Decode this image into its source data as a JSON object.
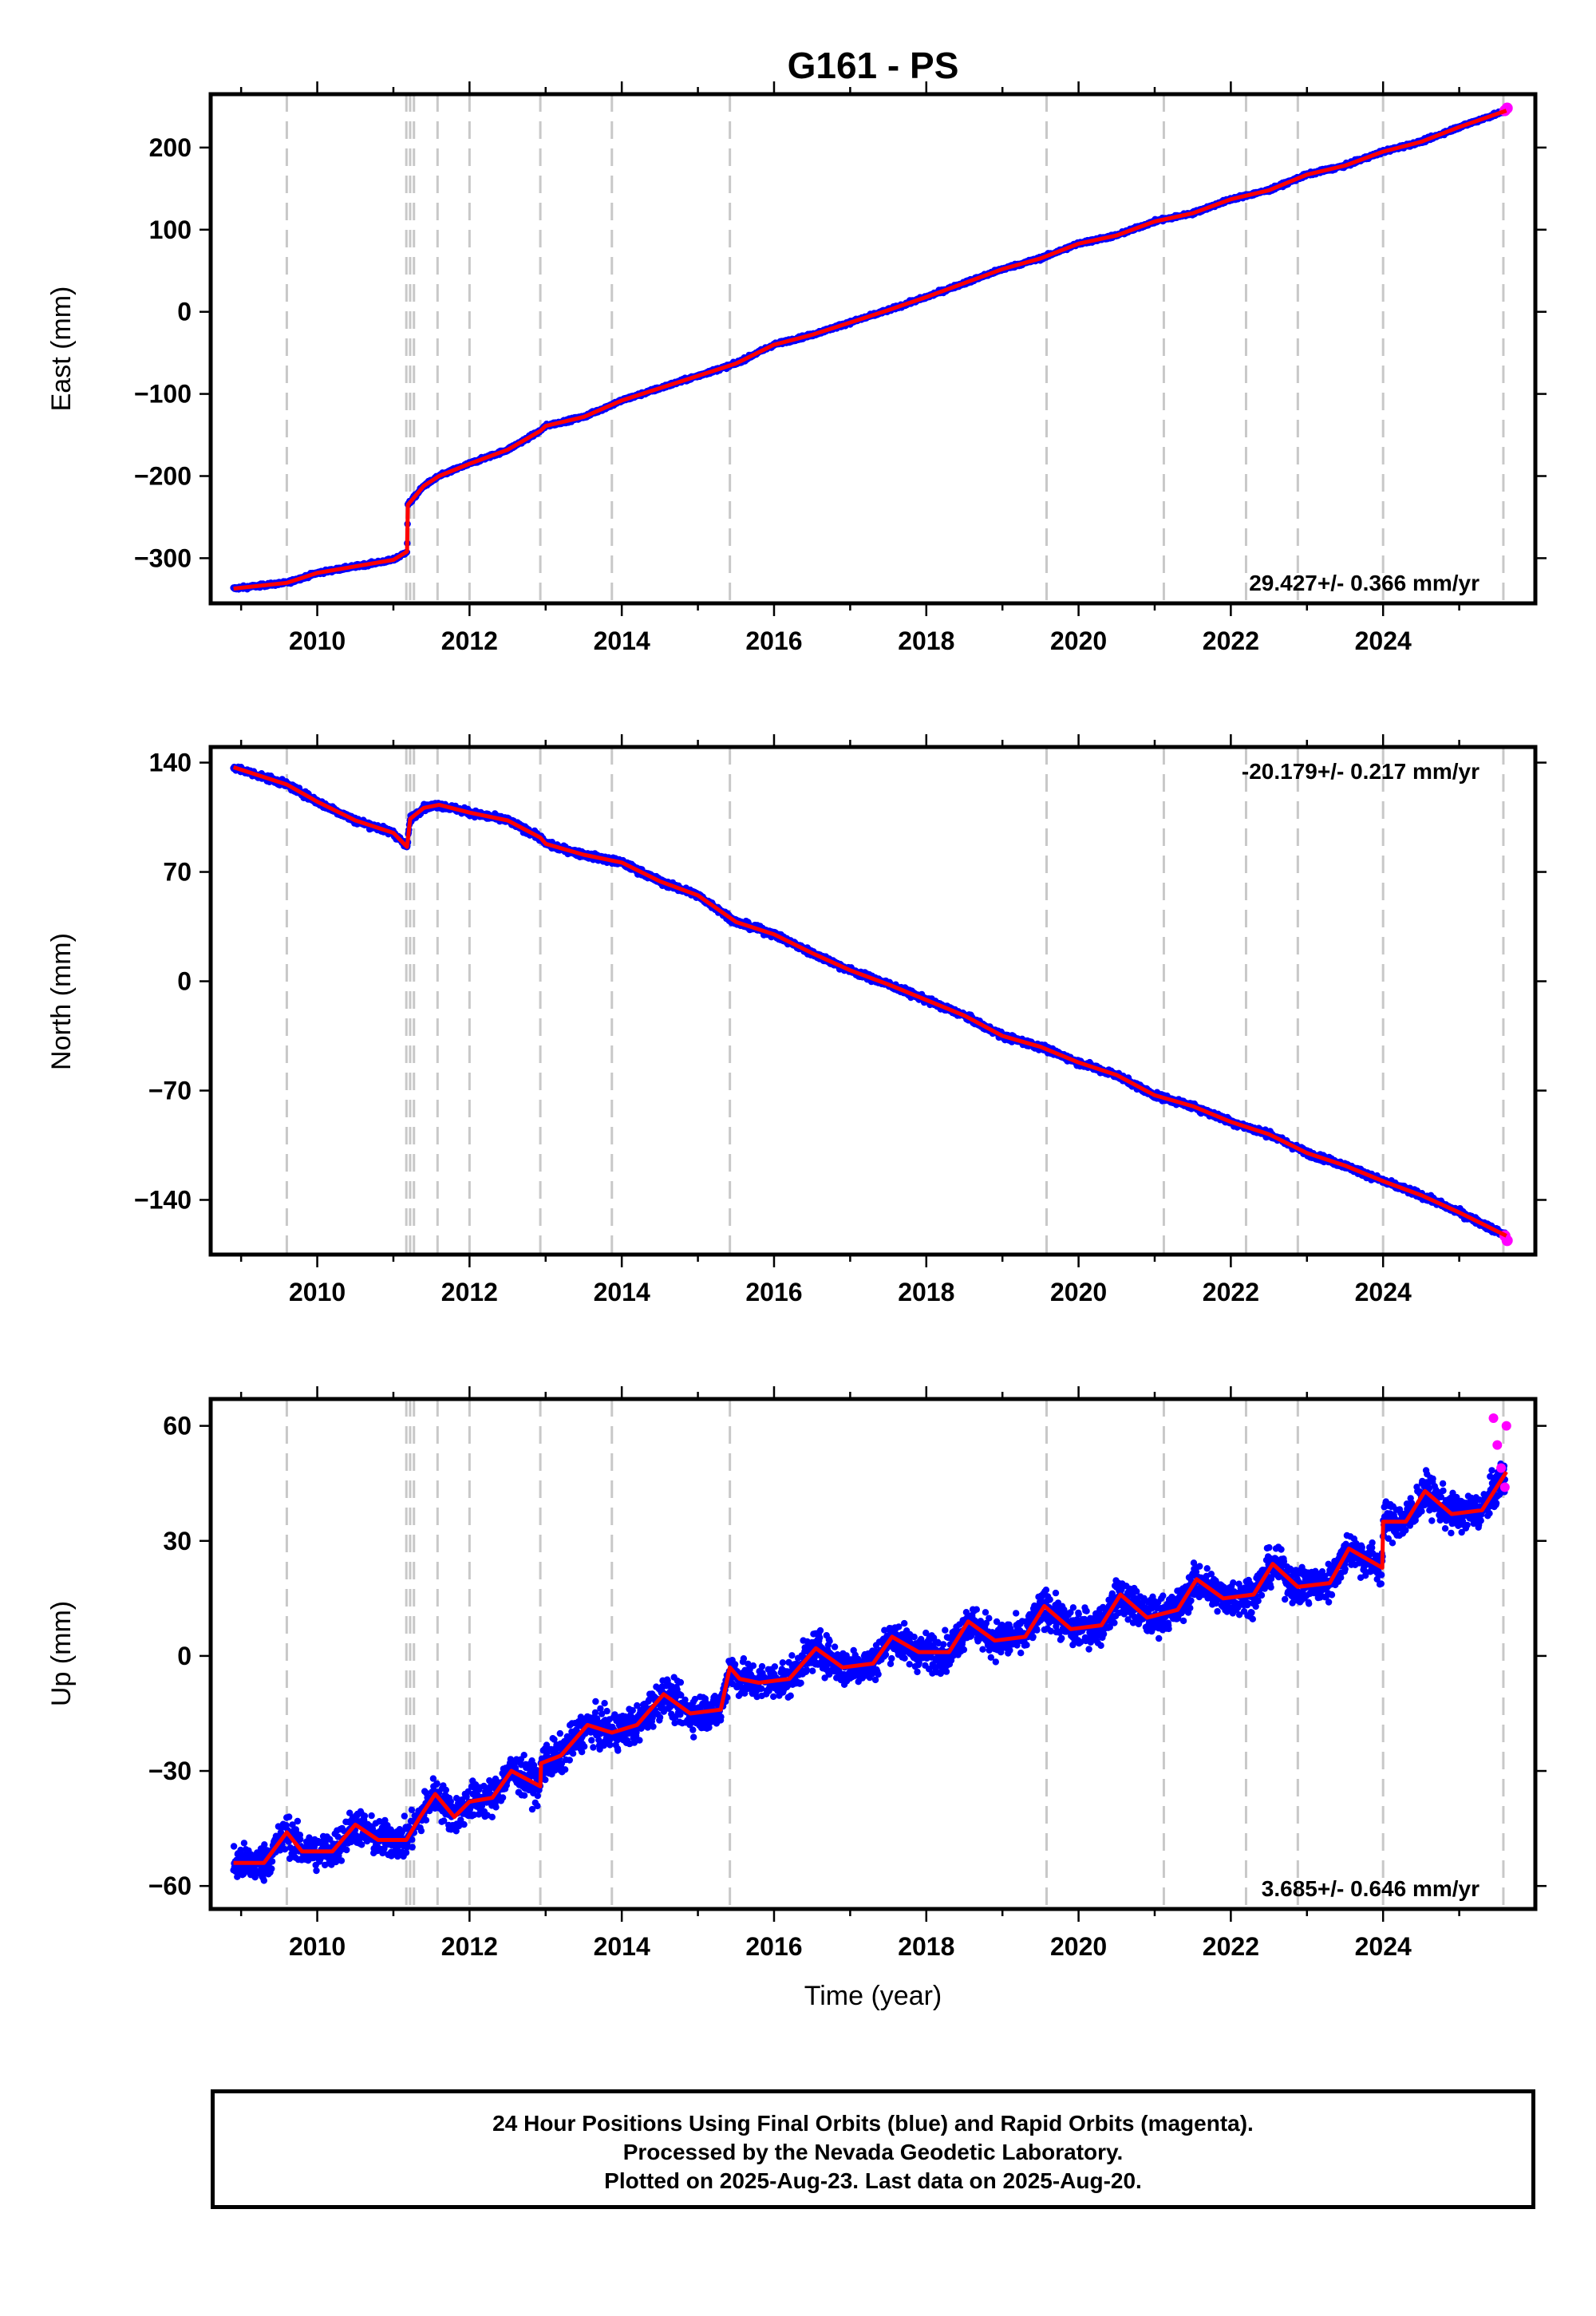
{
  "title": "G161 - PS",
  "colors": {
    "final_orbits": "#0000ff",
    "rapid_orbits": "#ff00ff",
    "model": "#ff0000",
    "event_lines": "#c8c8c8"
  },
  "event_lines": [
    2009.6,
    2011.17,
    2011.22,
    2011.27,
    2011.58,
    2012.0,
    2012.93,
    2013.87,
    2015.42,
    2019.58,
    2021.12,
    2022.2,
    2022.88,
    2024.0,
    2025.58
  ],
  "x_axis": {
    "label": "Time (year)",
    "range": [
      2008.6,
      2026.0
    ],
    "ticks": [
      2010,
      2012,
      2014,
      2016,
      2018,
      2020,
      2022,
      2024
    ],
    "tick_labels": [
      "2010",
      "2012",
      "2014",
      "2016",
      "2018",
      "2020",
      "2022",
      "2024"
    ]
  },
  "footer": {
    "line1": "24 Hour Positions Using Final Orbits (blue) and Rapid Orbits (magenta).",
    "line2": "Processed by the Nevada Geodetic Laboratory.",
    "line3": "Plotted on 2025-Aug-23. Last data on 2025-Aug-20."
  },
  "chart_data": [
    {
      "type": "scatter",
      "id": "east",
      "ylabel": "East (mm)",
      "ylim": [
        -355,
        265
      ],
      "yticks": [
        200,
        100,
        0,
        -100,
        -200,
        -300
      ],
      "ytick_labels": [
        "200",
        "100",
        "0",
        "−100",
        "−200",
        "−300"
      ],
      "rate": "29.427+/- 0.366 mm/yr",
      "rate_position": "bottom-right",
      "series": [
        {
          "role": "model",
          "x": [
            2008.9,
            2009.6,
            2010.0,
            2010.5,
            2011.0,
            2011.18,
            2011.19,
            2011.4,
            2011.6,
            2012.0,
            2012.5,
            2012.93,
            2013.0,
            2013.5,
            2014.0,
            2014.5,
            2015.0,
            2015.5,
            2016.0,
            2016.5,
            2017.0,
            2017.5,
            2018.0,
            2018.5,
            2019.0,
            2019.5,
            2020.0,
            2020.5,
            2021.0,
            2021.5,
            2022.0,
            2022.5,
            2023.0,
            2023.5,
            2024.0,
            2024.5,
            2025.0,
            2025.62
          ],
          "y": [
            -337,
            -330,
            -318,
            -310,
            -302,
            -292,
            -235,
            -212,
            -200,
            -185,
            -168,
            -145,
            -139,
            -128,
            -108,
            -93,
            -78,
            -63,
            -40,
            -28,
            -13,
            2,
            18,
            35,
            52,
            65,
            83,
            93,
            110,
            120,
            137,
            148,
            167,
            178,
            195,
            207,
            225,
            245
          ]
        }
      ]
    },
    {
      "type": "scatter",
      "id": "north",
      "ylabel": "North (mm)",
      "ylim": [
        -175,
        150
      ],
      "yticks": [
        140,
        70,
        0,
        -70,
        -140
      ],
      "ytick_labels": [
        "140",
        "70",
        "0",
        "−70",
        "−140"
      ],
      "rate": "-20.179+/- 0.217 mm/yr",
      "rate_position": "top-right",
      "series": [
        {
          "role": "model",
          "x": [
            2008.9,
            2009.6,
            2010.0,
            2010.5,
            2011.0,
            2011.18,
            2011.22,
            2011.4,
            2011.6,
            2012.0,
            2012.5,
            2012.93,
            2013.0,
            2013.5,
            2014.0,
            2014.5,
            2015.0,
            2015.5,
            2016.0,
            2016.5,
            2017.0,
            2017.5,
            2018.0,
            2018.5,
            2019.0,
            2019.5,
            2020.0,
            2020.5,
            2021.0,
            2021.5,
            2022.0,
            2022.5,
            2023.0,
            2023.5,
            2024.0,
            2024.5,
            2025.0,
            2025.62
          ],
          "y": [
            137,
            126,
            115,
            103,
            95,
            86,
            104,
            111,
            113,
            108,
            103,
            92,
            88,
            81,
            76,
            64,
            55,
            38,
            30,
            18,
            7,
            -2,
            -12,
            -22,
            -35,
            -42,
            -52,
            -60,
            -73,
            -80,
            -90,
            -98,
            -110,
            -118,
            -128,
            -137,
            -148,
            -163
          ]
        }
      ]
    },
    {
      "type": "scatter",
      "id": "up",
      "ylabel": "Up (mm)",
      "ylim": [
        -66,
        67
      ],
      "yticks": [
        60,
        30,
        0,
        -30,
        -60
      ],
      "ytick_labels": [
        "60",
        "30",
        "0",
        "−30",
        "−60"
      ],
      "rate": "3.685+/- 0.646 mm/yr",
      "rate_position": "bottom-right",
      "series": [
        {
          "role": "model",
          "x": [
            2008.9,
            2009.3,
            2009.6,
            2009.8,
            2010.2,
            2010.5,
            2010.8,
            2011.17,
            2011.35,
            2011.55,
            2011.8,
            2012.0,
            2012.3,
            2012.55,
            2012.93,
            2012.94,
            2013.2,
            2013.55,
            2013.87,
            2014.2,
            2014.55,
            2014.9,
            2015.3,
            2015.42,
            2015.55,
            2015.8,
            2016.2,
            2016.55,
            2016.9,
            2017.3,
            2017.55,
            2017.9,
            2018.3,
            2018.55,
            2018.9,
            2019.3,
            2019.55,
            2019.9,
            2020.3,
            2020.55,
            2020.9,
            2021.3,
            2021.55,
            2021.9,
            2022.3,
            2022.55,
            2022.88,
            2023.3,
            2023.55,
            2023.99,
            2024.0,
            2024.3,
            2024.55,
            2024.9,
            2025.3,
            2025.62
          ],
          "y": [
            -54,
            -54,
            -46,
            -51,
            -51,
            -44,
            -48,
            -48,
            -42,
            -36,
            -42,
            -38,
            -37,
            -30,
            -34,
            -28,
            -26,
            -18,
            -20,
            -18,
            -10,
            -15,
            -14,
            -3,
            -6,
            -7,
            -6,
            2,
            -3,
            -2,
            5,
            1,
            1,
            9,
            4,
            5,
            13,
            7,
            8,
            16,
            10,
            12,
            20,
            15,
            16,
            24,
            18,
            19,
            28,
            23,
            35,
            35,
            43,
            37,
            38,
            48
          ]
        },
        {
          "role": "rapid_orbits",
          "x": [
            2025.45,
            2025.5,
            2025.55,
            2025.6,
            2025.62
          ],
          "y": [
            62,
            55,
            49,
            44,
            60
          ]
        }
      ]
    }
  ]
}
